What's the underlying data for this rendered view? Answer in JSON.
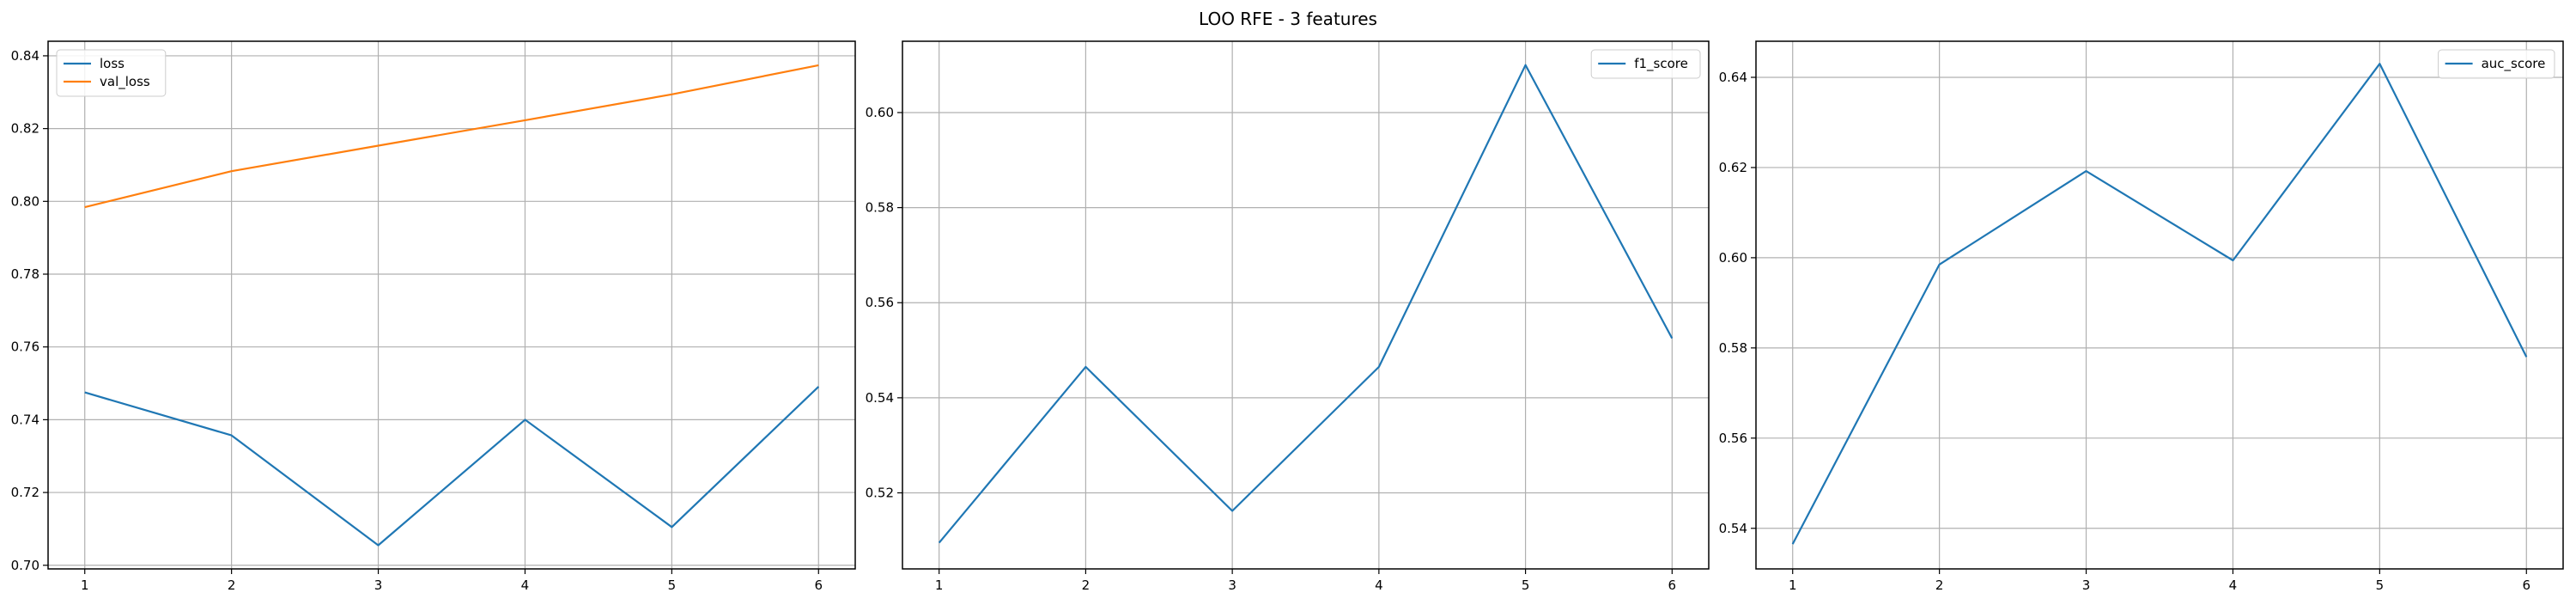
{
  "figure": {
    "title": "LOO RFE - 3 features"
  },
  "chart_data": [
    {
      "type": "line",
      "title": "",
      "xlabel": "",
      "ylabel": "",
      "x": [
        1,
        2,
        3,
        4,
        5,
        6
      ],
      "xticks": [
        "1",
        "2",
        "3",
        "4",
        "5",
        "6"
      ],
      "xlim": [
        0.75,
        6.25
      ],
      "ylim": [
        0.699,
        0.844
      ],
      "yticks": [
        0.7,
        0.72,
        0.74,
        0.76,
        0.78,
        0.8,
        0.82,
        0.84
      ],
      "grid": true,
      "legend": "top-left",
      "series": [
        {
          "name": "loss",
          "color": "#1f77b4",
          "values": [
            0.7475,
            0.7357,
            0.7055,
            0.74,
            0.7105,
            0.7491
          ]
        },
        {
          "name": "val_loss",
          "color": "#ff7f0e",
          "values": [
            0.7984,
            0.8083,
            0.8153,
            0.8223,
            0.8294,
            0.8374
          ]
        }
      ]
    },
    {
      "type": "line",
      "title": "",
      "xlabel": "",
      "ylabel": "",
      "x": [
        1,
        2,
        3,
        4,
        5,
        6
      ],
      "xticks": [
        "1",
        "2",
        "3",
        "4",
        "5",
        "6"
      ],
      "xlim": [
        0.75,
        6.25
      ],
      "ylim": [
        0.504,
        0.615
      ],
      "yticks": [
        0.52,
        0.54,
        0.56,
        0.58,
        0.6
      ],
      "grid": true,
      "legend": "top-right",
      "series": [
        {
          "name": "f1_score",
          "color": "#1f77b4",
          "values": [
            0.5095,
            0.5465,
            0.5162,
            0.5465,
            0.61,
            0.5525
          ]
        }
      ]
    },
    {
      "type": "line",
      "title": "",
      "xlabel": "",
      "ylabel": "",
      "x": [
        1,
        2,
        3,
        4,
        5,
        6
      ],
      "xticks": [
        "1",
        "2",
        "3",
        "4",
        "5",
        "6"
      ],
      "xlim": [
        0.75,
        6.25
      ],
      "ylim": [
        0.531,
        0.648
      ],
      "yticks": [
        0.54,
        0.56,
        0.58,
        0.6,
        0.62,
        0.64
      ],
      "grid": true,
      "legend": "top-right",
      "series": [
        {
          "name": "auc_score",
          "color": "#1f77b4",
          "values": [
            0.5365,
            0.5985,
            0.6192,
            0.5994,
            0.643,
            0.578
          ]
        }
      ]
    }
  ]
}
